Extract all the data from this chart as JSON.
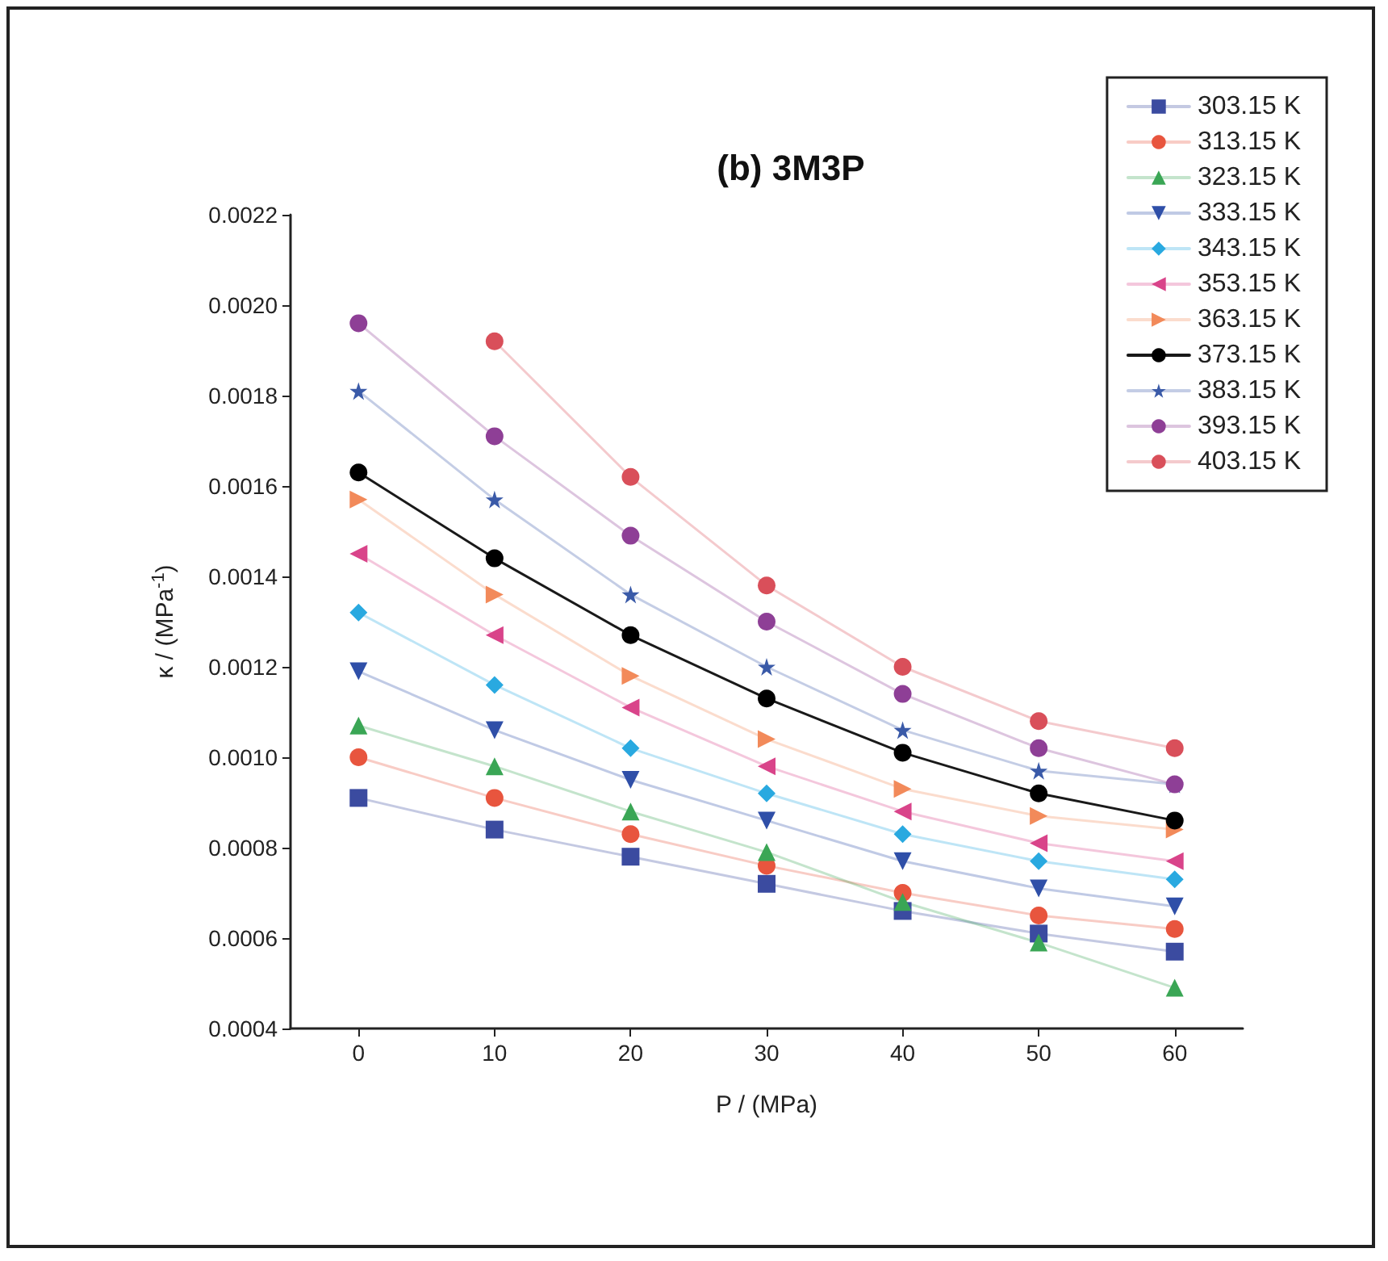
{
  "chart_data": {
    "type": "line",
    "title": "(b) 3M3P",
    "xlabel": "P / (MPa)",
    "ylabel": "κ / (MPa$^{-1}$)",
    "x": [
      0,
      10,
      20,
      30,
      40,
      50,
      60
    ],
    "xlim": [
      -5,
      65
    ],
    "xticks": [
      0,
      10,
      20,
      30,
      40,
      50,
      60
    ],
    "ylim": [
      0.0004,
      0.0022
    ],
    "yticks": [
      {
        "value": 0.0004,
        "label": "0.0004"
      },
      {
        "value": 0.0006,
        "label": "0.0006"
      },
      {
        "value": 0.0008,
        "label": "0.0008"
      },
      {
        "value": 0.001,
        "label": "0.0010"
      },
      {
        "value": 0.0012,
        "label": "0.0012"
      },
      {
        "value": 0.0014,
        "label": "0.0014"
      },
      {
        "value": 0.0016,
        "label": "0.0016"
      },
      {
        "value": 0.0018,
        "label": "0.0018"
      },
      {
        "value": 0.002,
        "label": "0.0020"
      },
      {
        "value": 0.0022,
        "label": "0.0022"
      }
    ],
    "grid": false,
    "legend": "top right",
    "line_style": "solid",
    "series": [
      {
        "name": "303.15 K",
        "color": "#3b4ba0",
        "marker": "square",
        "values": [
          0.00091,
          0.00084,
          0.00078,
          0.00072,
          0.00066,
          0.00061,
          0.00057
        ]
      },
      {
        "name": "313.15 K",
        "color": "#e8553e",
        "marker": "circle",
        "values": [
          0.001,
          0.00091,
          0.00083,
          0.00076,
          0.0007,
          0.00065,
          0.00062
        ]
      },
      {
        "name": "323.15 K",
        "color": "#3aa655",
        "marker": "triangle",
        "values": [
          0.00107,
          0.00098,
          0.00088,
          0.00079,
          0.00068,
          0.00059,
          0.00049
        ]
      },
      {
        "name": "333.15 K",
        "color": "#2f4fa8",
        "marker": "triangle-down",
        "values": [
          0.00119,
          0.00106,
          0.00095,
          0.00086,
          0.00077,
          0.00071,
          0.00067
        ]
      },
      {
        "name": "343.15 K",
        "color": "#29a9e0",
        "marker": "diamond",
        "values": [
          0.00132,
          0.00116,
          0.00102,
          0.00092,
          0.00083,
          0.00077,
          0.00073
        ]
      },
      {
        "name": "353.15 K",
        "color": "#d9448a",
        "marker": "triangle-left",
        "values": [
          0.00145,
          0.00127,
          0.00111,
          0.00098,
          0.00088,
          0.00081,
          0.00077
        ]
      },
      {
        "name": "363.15 K",
        "color": "#f28a5a",
        "marker": "triangle-right",
        "values": [
          0.00157,
          0.00136,
          0.00118,
          0.00104,
          0.00093,
          0.00087,
          0.00084
        ]
      },
      {
        "name": "373.15 K",
        "color": "#000000",
        "marker": "circle",
        "values": [
          0.00163,
          0.00144,
          0.00127,
          0.00113,
          0.00101,
          0.00092,
          0.00086
        ]
      },
      {
        "name": "383.15 K",
        "color": "#3a5aa8",
        "marker": "star",
        "values": [
          0.00181,
          0.00157,
          0.00136,
          0.0012,
          0.00106,
          0.00097,
          0.00094
        ]
      },
      {
        "name": "393.15 K",
        "color": "#8e3f96",
        "marker": "circle",
        "values": [
          0.00196,
          0.00171,
          0.00149,
          0.0013,
          0.00114,
          0.00102,
          0.00094
        ]
      },
      {
        "name": "403.15 K",
        "color": "#d94f5a",
        "marker": "circle",
        "values": [
          null,
          0.00192,
          0.00162,
          0.00138,
          0.0012,
          0.00108,
          0.00102
        ]
      }
    ]
  }
}
